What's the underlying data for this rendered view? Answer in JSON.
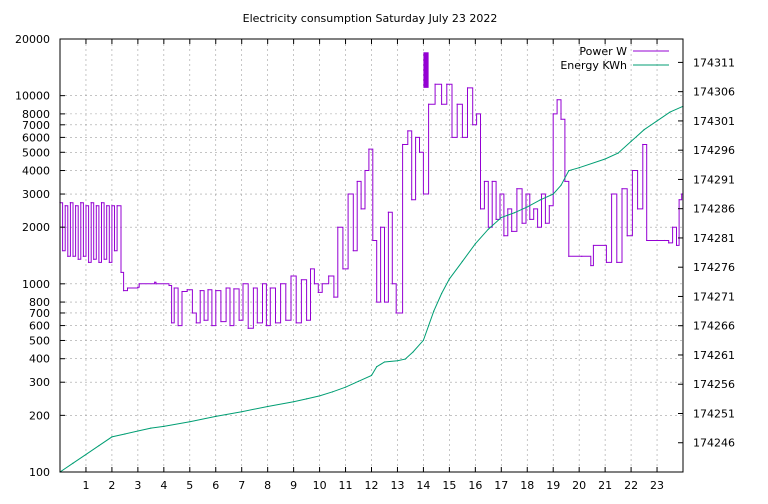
{
  "chart_data": {
    "type": "line",
    "title": "Electricity consumption Saturday July 23 2022",
    "x_ticks": [
      "1",
      "2",
      "3",
      "4",
      "5",
      "6",
      "7",
      "8",
      "9",
      "10",
      "11",
      "12",
      "13",
      "14",
      "15",
      "16",
      "17",
      "18",
      "19",
      "20",
      "21",
      "22",
      "23"
    ],
    "x_range": [
      0,
      24
    ],
    "y_left": {
      "scale": "log",
      "range": [
        100,
        20000
      ],
      "ticks": [
        100,
        200,
        300,
        400,
        500,
        600,
        700,
        800,
        1000,
        2000,
        3000,
        4000,
        5000,
        6000,
        7000,
        8000,
        10000,
        20000
      ]
    },
    "y_right": {
      "scale": "linear",
      "range": [
        174241,
        174315
      ],
      "ticks": [
        174246,
        174251,
        174256,
        174261,
        174266,
        174271,
        174276,
        174281,
        174286,
        174291,
        174296,
        174301,
        174306,
        174311
      ]
    },
    "grid": true,
    "legend_position": "top-right",
    "series": [
      {
        "name": "Power W",
        "axis": "left",
        "color": "#9400d3",
        "style": "step",
        "x": [
          0,
          0.1,
          0.2,
          0.3,
          0.4,
          0.5,
          0.6,
          0.7,
          0.8,
          0.9,
          1.0,
          1.1,
          1.2,
          1.3,
          1.4,
          1.5,
          1.6,
          1.7,
          1.8,
          1.9,
          2.0,
          2.1,
          2.2,
          2.35,
          2.45,
          2.6,
          3.0,
          3.05,
          3.65,
          3.7,
          4.2,
          4.3,
          4.4,
          4.55,
          4.7,
          4.9,
          5.1,
          5.25,
          5.4,
          5.55,
          5.7,
          5.85,
          6.0,
          6.2,
          6.4,
          6.55,
          6.7,
          6.9,
          7.05,
          7.25,
          7.45,
          7.6,
          7.8,
          7.95,
          8.1,
          8.3,
          8.5,
          8.7,
          8.9,
          9.1,
          9.3,
          9.5,
          9.65,
          9.8,
          9.95,
          10.1,
          10.35,
          10.55,
          10.7,
          10.9,
          11.1,
          11.3,
          11.45,
          11.6,
          11.75,
          11.9,
          12.05,
          12.2,
          12.35,
          12.5,
          12.65,
          12.8,
          12.95,
          13.2,
          13.4,
          13.55,
          13.7,
          13.85,
          14.0,
          14.2,
          14.45,
          14.7,
          14.9,
          15.1,
          15.3,
          15.5,
          15.7,
          15.9,
          16.05,
          16.2,
          16.35,
          16.5,
          16.65,
          16.8,
          16.95,
          17.1,
          17.25,
          17.4,
          17.6,
          17.8,
          17.95,
          18.1,
          18.25,
          18.4,
          18.55,
          18.7,
          18.85,
          19.0,
          19.15,
          19.3,
          19.45,
          19.6,
          20.1,
          20.45,
          20.55,
          21.05,
          21.25,
          21.45,
          21.65,
          21.85,
          22.05,
          22.25,
          22.45,
          22.6,
          23.3,
          23.45,
          23.6,
          23.75,
          23.85,
          23.95
        ],
        "values": [
          2700,
          1500,
          2600,
          1400,
          2700,
          1400,
          2600,
          1350,
          2700,
          1400,
          2600,
          1300,
          2700,
          1350,
          2600,
          1300,
          2700,
          1350,
          2600,
          1300,
          2600,
          1500,
          2600,
          1150,
          920,
          950,
          960,
          1000,
          1020,
          1000,
          980,
          620,
          950,
          600,
          910,
          930,
          700,
          620,
          920,
          640,
          930,
          600,
          920,
          630,
          950,
          600,
          940,
          640,
          1000,
          580,
          950,
          620,
          1000,
          600,
          950,
          620,
          1000,
          640,
          1100,
          620,
          1050,
          640,
          1200,
          1000,
          900,
          1000,
          1100,
          850,
          2000,
          1200,
          3000,
          1500,
          3500,
          2500,
          4000,
          5200,
          1700,
          800,
          2000,
          800,
          2400,
          1000,
          700,
          5500,
          6500,
          2800,
          6000,
          5000,
          3000,
          9000,
          11500,
          9000,
          11500,
          6000,
          9000,
          6000,
          11000,
          7000,
          8000,
          2500,
          3500,
          2000,
          3500,
          2200,
          3000,
          1800,
          2500,
          1900,
          3200,
          2100,
          3000,
          2200,
          2500,
          2000,
          3000,
          2100,
          2600,
          8000,
          9500,
          7500,
          3500,
          1400,
          1400,
          1250,
          1600,
          1300,
          3000,
          1300,
          3200,
          1800,
          4000,
          2500,
          5500,
          1700,
          1700,
          1650,
          2000,
          1600,
          2800,
          3000
        ],
        "highlight_peak": [
          14.0,
          14.2,
          17000
        ]
      },
      {
        "name": "Energy KWh",
        "axis": "right",
        "color": "#009e73",
        "style": "line",
        "x": [
          0,
          0.5,
          1,
          1.5,
          2,
          2.5,
          3,
          3.5,
          4,
          5,
          6,
          7,
          8,
          9,
          9.5,
          10,
          10.5,
          11,
          11.5,
          12,
          12.2,
          12.5,
          13,
          13.3,
          13.6,
          14,
          14.2,
          14.4,
          14.7,
          15,
          15.5,
          16,
          16.5,
          17,
          17.5,
          18,
          18.5,
          19,
          19.3,
          19.6,
          20,
          21,
          21.5,
          22,
          22.5,
          23,
          23.5,
          24
        ],
        "values": [
          174241,
          174242.5,
          174244,
          174245.5,
          174247,
          174247.5,
          174248,
          174248.5,
          174248.8,
          174249.6,
          174250.5,
          174251.3,
          174252.2,
          174253,
          174253.5,
          174254,
          174254.7,
          174255.5,
          174256.5,
          174257.5,
          174259,
          174259.8,
          174260,
          174260.3,
          174261.5,
          174263.5,
          174266,
          174268.5,
          174271.5,
          174274,
          174277,
          174280,
          174282.5,
          174284.5,
          174285.3,
          174286.3,
          174287.5,
          174288.5,
          174290,
          174292.5,
          174293,
          174294.5,
          174295.5,
          174297.5,
          174299.5,
          174301,
          174302.5,
          174303.5
        ]
      }
    ]
  }
}
